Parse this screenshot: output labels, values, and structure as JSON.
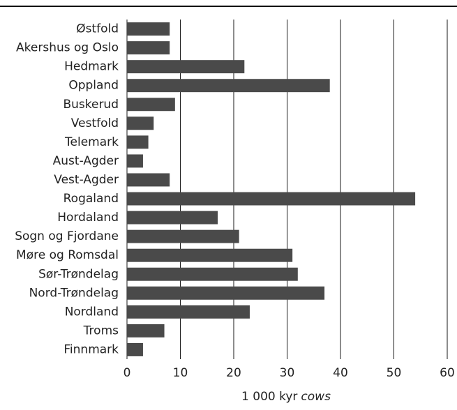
{
  "chart_data": {
    "type": "bar",
    "orientation": "horizontal",
    "categories": [
      "Østfold",
      "Akershus og Oslo",
      "Hedmark",
      "Oppland",
      "Buskerud",
      "Vestfold",
      "Telemark",
      "Aust-Agder",
      "Vest-Agder",
      "Rogaland",
      "Hordaland",
      "Sogn og Fjordane",
      "Møre og Romsdal",
      "Sør-Trøndelag",
      "Nord-Trøndelag",
      "Nordland",
      "Troms",
      "Finnmark"
    ],
    "values": [
      8,
      8,
      22,
      38,
      9,
      5,
      4,
      3,
      8,
      54,
      17,
      21,
      31,
      32,
      37,
      23,
      7,
      3
    ],
    "xlabel": "1 000 kyr",
    "xlabel_italic": "cows",
    "xlim": [
      0,
      60
    ],
    "xticks": [
      0,
      10,
      20,
      30,
      40,
      50,
      60
    ],
    "grid": "vertical",
    "colors": {
      "bar": "#4a4a4a",
      "grid": "#1a1a1a",
      "rule": "#111111"
    }
  }
}
